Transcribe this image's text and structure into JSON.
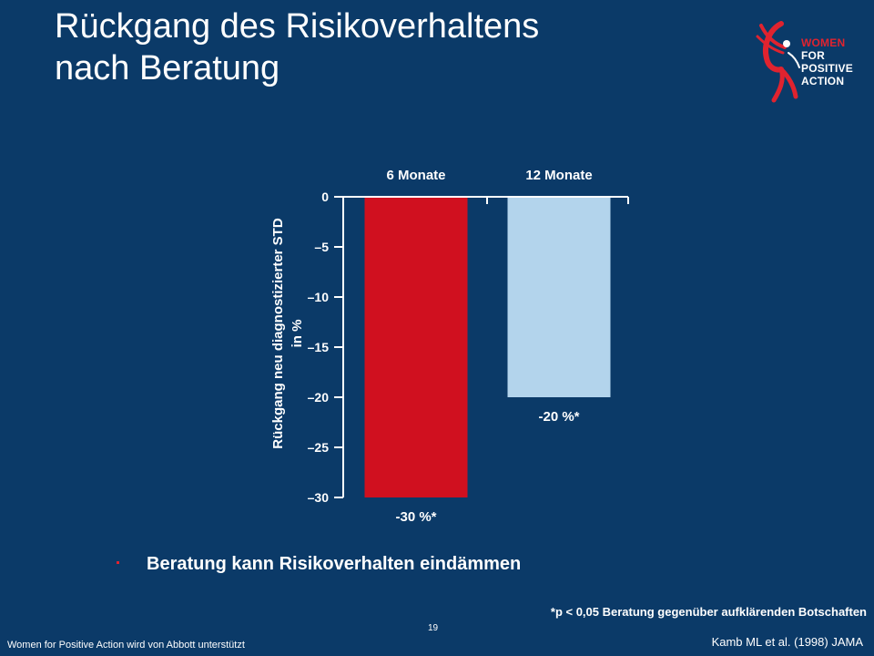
{
  "slide": {
    "title_line1": "Rückgang des Risikoverhaltens",
    "title_line2": "nach Beratung",
    "bullet": "Beratung kann Risikoverhalten eindämmen",
    "footnote": "*p < 0,05 Beratung gegenüber aufklärenden Botschaften",
    "page_number": "19",
    "sponsor": "Women for Positive Action wird von Abbott unterstützt",
    "citation": "Kamb ML et al. (1998) JAMA"
  },
  "logo": {
    "lines": [
      "WOMEN",
      "FOR",
      "POSITIVE",
      "ACTION"
    ],
    "icon": "ribbon-figure-icon"
  },
  "colors": {
    "background": "#0b3a68",
    "bar_6": "#d0101f",
    "bar_12": "#b3d4ec",
    "accent": "#e0232f"
  },
  "chart_data": {
    "type": "bar",
    "categories": [
      "6 Monate",
      "12 Monate"
    ],
    "values": [
      -30,
      -20
    ],
    "data_labels": [
      "-30 %*",
      "-20 %*"
    ],
    "colors": [
      "#d0101f",
      "#b3d4ec"
    ],
    "ylabel_line1": "Rückgang neu diagnostizierter STD",
    "ylabel_line2": "in %",
    "ylim": [
      -30,
      0
    ],
    "yticks": [
      0,
      -5,
      -10,
      -15,
      -20,
      -25,
      -30
    ],
    "ytick_labels": [
      "0",
      "–5",
      "–10",
      "–15",
      "–20",
      "–25",
      "–30"
    ],
    "category_axis_position": "top",
    "grid": false
  }
}
